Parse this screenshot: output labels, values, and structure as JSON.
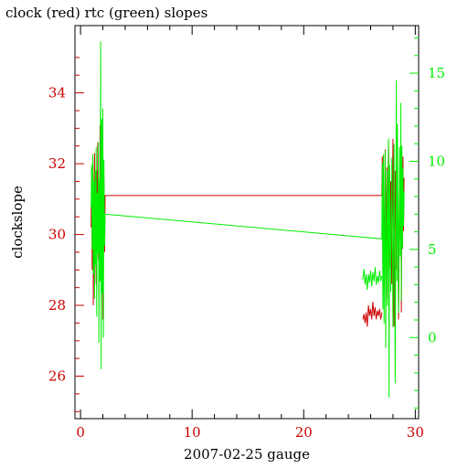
{
  "chart_data": {
    "type": "line",
    "title": "clock (red) rtc (green) slopes",
    "xlabel": "2007-02-25 gauge",
    "ylabel": "clockslope",
    "xlim": [
      -0.5,
      30.3
    ],
    "ylim_left": [
      24.8,
      35.9
    ],
    "ylim_right": [
      -4.6,
      17.7
    ],
    "x_ticks": [
      0,
      10,
      20,
      30
    ],
    "y_left_ticks": [
      26,
      28,
      30,
      32,
      34
    ],
    "y_right_ticks": [
      0,
      5,
      10,
      15
    ],
    "colors": {
      "left_axis": "#cc0000",
      "right_axis": "#00ee00",
      "axes": "#000000"
    },
    "series": [
      {
        "name": "clock",
        "axis": "left",
        "color": "#cc0000",
        "points": [
          [
            0.95,
            30.2
          ],
          [
            1.0,
            31.9
          ],
          [
            1.05,
            29.0
          ],
          [
            1.1,
            31.6
          ],
          [
            1.15,
            28.0
          ],
          [
            1.2,
            30.8
          ],
          [
            1.25,
            32.3
          ],
          [
            1.3,
            29.4
          ],
          [
            1.35,
            31.2
          ],
          [
            1.4,
            28.6
          ],
          [
            1.45,
            31.8
          ],
          [
            1.5,
            30.0
          ],
          [
            1.55,
            32.6
          ],
          [
            1.6,
            29.3
          ],
          [
            1.65,
            31.5
          ],
          [
            1.7,
            28.8
          ],
          [
            1.75,
            33.1
          ],
          [
            1.8,
            30.4
          ],
          [
            1.85,
            31.9
          ],
          [
            1.9,
            29.0
          ],
          [
            1.95,
            31.4
          ],
          [
            2.0,
            27.6
          ],
          [
            2.05,
            30.9
          ],
          [
            2.1,
            31.6
          ],
          [
            2.15,
            29.5
          ],
          [
            2.2,
            31.1
          ],
          [
            27.0,
            31.1
          ],
          [
            27.05,
            32.2
          ],
          [
            27.1,
            29.2
          ],
          [
            27.15,
            31.6
          ],
          [
            27.2,
            28.5
          ],
          [
            27.3,
            32.4
          ],
          [
            27.35,
            29.8
          ],
          [
            27.45,
            31.9
          ],
          [
            27.5,
            28.2
          ],
          [
            27.6,
            32.7
          ],
          [
            27.7,
            29.1
          ],
          [
            27.8,
            31.5
          ],
          [
            27.9,
            28.6
          ],
          [
            28.0,
            32.7
          ],
          [
            28.1,
            27.4
          ],
          [
            28.2,
            31.8
          ],
          [
            28.3,
            29.0
          ],
          [
            28.4,
            32.1
          ],
          [
            28.5,
            27.6
          ],
          [
            28.6,
            31.7
          ],
          [
            28.65,
            29.9
          ],
          [
            28.7,
            32.6
          ],
          [
            28.75,
            27.8
          ],
          [
            28.8,
            31.3
          ],
          [
            28.85,
            29.6
          ],
          [
            28.9,
            32.2
          ],
          [
            28.95,
            30.1
          ],
          [
            29.0,
            31.6
          ]
        ],
        "segments_extra": [
          [
            [
              25.3,
              27.6
            ],
            [
              25.4,
              27.75
            ],
            [
              25.5,
              27.5
            ],
            [
              25.6,
              27.8
            ],
            [
              25.7,
              27.4
            ],
            [
              25.8,
              28.0
            ],
            [
              25.9,
              27.7
            ],
            [
              26.0,
              27.9
            ],
            [
              26.1,
              27.6
            ],
            [
              26.2,
              28.1
            ],
            [
              26.3,
              27.7
            ],
            [
              26.4,
              27.95
            ],
            [
              26.5,
              27.6
            ],
            [
              26.6,
              27.85
            ],
            [
              26.7,
              27.7
            ],
            [
              26.8,
              27.9
            ],
            [
              26.9,
              27.6
            ],
            [
              27.0,
              27.8
            ]
          ]
        ]
      },
      {
        "name": "rtc",
        "axis": "right",
        "color": "#00ee00",
        "points": [
          [
            0.95,
            7.4
          ],
          [
            1.0,
            9.8
          ],
          [
            1.05,
            5.0
          ],
          [
            1.1,
            10.4
          ],
          [
            1.15,
            3.6
          ],
          [
            1.2,
            8.9
          ],
          [
            1.25,
            2.2
          ],
          [
            1.3,
            9.5
          ],
          [
            1.35,
            4.1
          ],
          [
            1.4,
            10.8
          ],
          [
            1.45,
            1.2
          ],
          [
            1.5,
            8.2
          ],
          [
            1.55,
            4.8
          ],
          [
            1.6,
            11.1
          ],
          [
            1.65,
            -0.3
          ],
          [
            1.7,
            9.0
          ],
          [
            1.75,
            3.2
          ],
          [
            1.8,
            16.8
          ],
          [
            1.85,
            -1.8
          ],
          [
            1.9,
            12.4
          ],
          [
            1.95,
            2.5
          ],
          [
            2.0,
            13.0
          ],
          [
            2.05,
            0.0
          ],
          [
            2.1,
            10.1
          ],
          [
            2.15,
            5.2
          ],
          [
            2.2,
            7.0
          ],
          [
            27.0,
            5.6
          ],
          [
            27.05,
            9.9
          ],
          [
            27.1,
            1.6
          ],
          [
            27.15,
            10.4
          ],
          [
            27.2,
            0.8
          ],
          [
            27.3,
            10.6
          ],
          [
            27.35,
            -0.6
          ],
          [
            27.45,
            9.5
          ],
          [
            27.5,
            1.8
          ],
          [
            27.6,
            11.3
          ],
          [
            27.65,
            -3.4
          ],
          [
            27.7,
            9.8
          ],
          [
            27.8,
            2.6
          ],
          [
            27.9,
            10.2
          ],
          [
            28.0,
            0.6
          ],
          [
            28.1,
            11.0
          ],
          [
            28.2,
            -2.6
          ],
          [
            28.3,
            14.6
          ],
          [
            28.35,
            3.2
          ],
          [
            28.4,
            12.1
          ],
          [
            28.5,
            1.4
          ],
          [
            28.6,
            10.8
          ],
          [
            28.65,
            4.6
          ],
          [
            28.7,
            13.3
          ],
          [
            28.75,
            2.1
          ],
          [
            28.8,
            10.9
          ],
          [
            28.85,
            5.1
          ],
          [
            28.9,
            9.6
          ],
          [
            28.95,
            6.3
          ],
          [
            29.0,
            8.3
          ]
        ],
        "segments_extra": [
          [
            [
              25.3,
              3.3
            ],
            [
              25.4,
              3.9
            ],
            [
              25.5,
              3.0
            ],
            [
              25.6,
              3.6
            ],
            [
              25.7,
              2.7
            ],
            [
              25.8,
              3.6
            ],
            [
              25.9,
              3.1
            ],
            [
              26.0,
              3.8
            ],
            [
              26.1,
              2.9
            ],
            [
              26.2,
              3.7
            ],
            [
              26.3,
              3.2
            ],
            [
              26.4,
              4.0
            ],
            [
              26.5,
              3.0
            ],
            [
              26.6,
              3.5
            ],
            [
              26.7,
              3.1
            ],
            [
              26.8,
              3.8
            ],
            [
              26.9,
              3.2
            ],
            [
              27.0,
              3.5
            ]
          ]
        ]
      }
    ]
  }
}
